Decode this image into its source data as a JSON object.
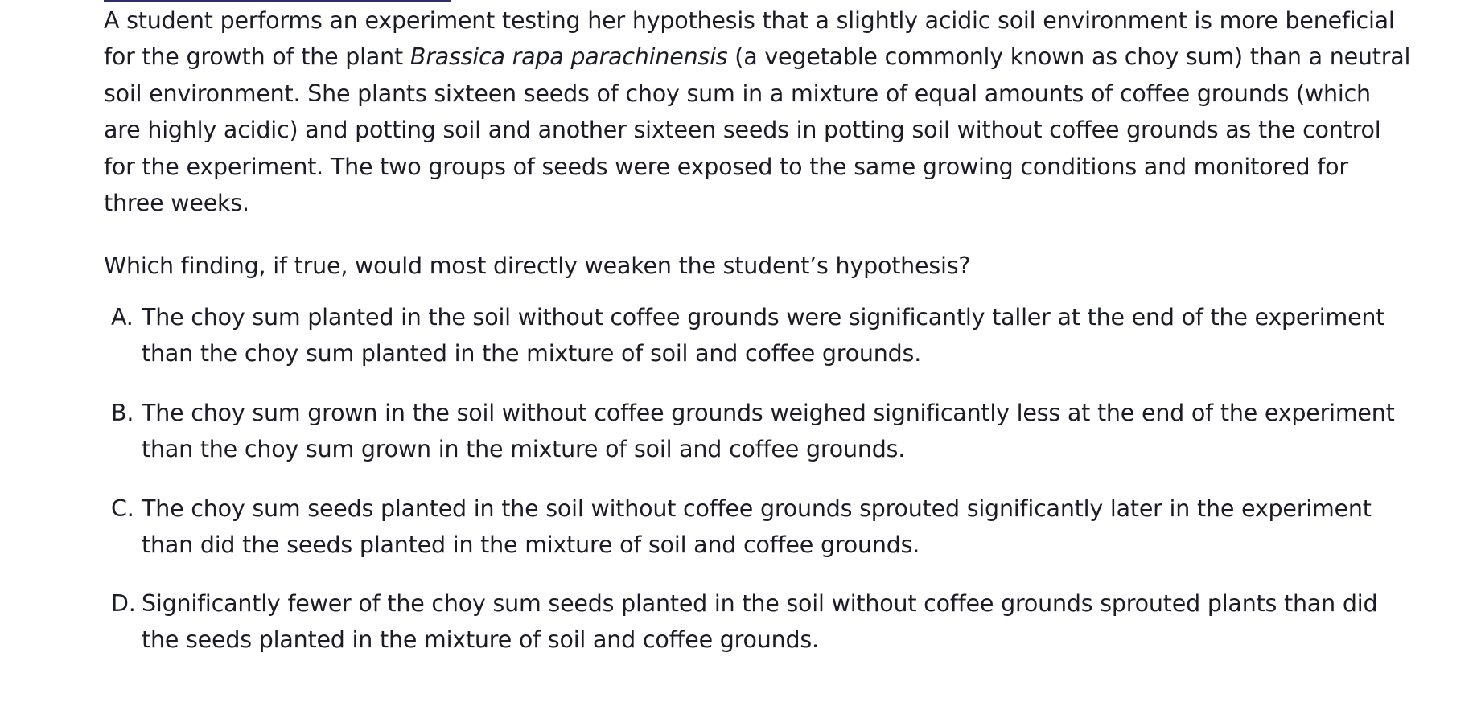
{
  "passage": {
    "line1": "A student performs an experiment testing her hypothesis that a slightly acidic soil environment is more beneficial",
    "line2_pre": "for the growth of the plant ",
    "line2_italic": "Brassica rapa parachinensis",
    "line2_post": " (a vegetable commonly known as choy sum) than a neutral",
    "line3": "soil environment. She plants sixteen seeds of choy sum in a mixture of equal amounts of coffee grounds (which",
    "line4": "are highly acidic) and potting soil and another sixteen seeds in potting soil without coffee grounds as the control",
    "line5": "for the experiment. The two groups of seeds were exposed to the same growing conditions and monitored for",
    "line6": "three weeks."
  },
  "question": "Which finding, if true, would most directly weaken the student’s hypothesis?",
  "choices": [
    {
      "letter": "A.",
      "line1": "The choy sum planted in the soil without coffee grounds were significantly taller at the end of the experiment",
      "line2": "than the choy sum planted in the mixture of soil and coffee grounds."
    },
    {
      "letter": "B.",
      "line1": "The choy sum grown in the soil without coffee grounds weighed significantly less at the end of the experiment",
      "line2": "than the choy sum grown in the mixture of soil and coffee grounds."
    },
    {
      "letter": "C.",
      "line1": "The choy sum seeds planted in the soil without coffee grounds sprouted significantly later in the experiment",
      "line2": "than did the seeds planted in the mixture of soil and coffee grounds."
    },
    {
      "letter": "D.",
      "line1": "Significantly fewer of the choy sum seeds planted in the soil without coffee grounds sprouted plants than did",
      "line2": "the seeds planted in the mixture of soil and coffee grounds."
    }
  ]
}
